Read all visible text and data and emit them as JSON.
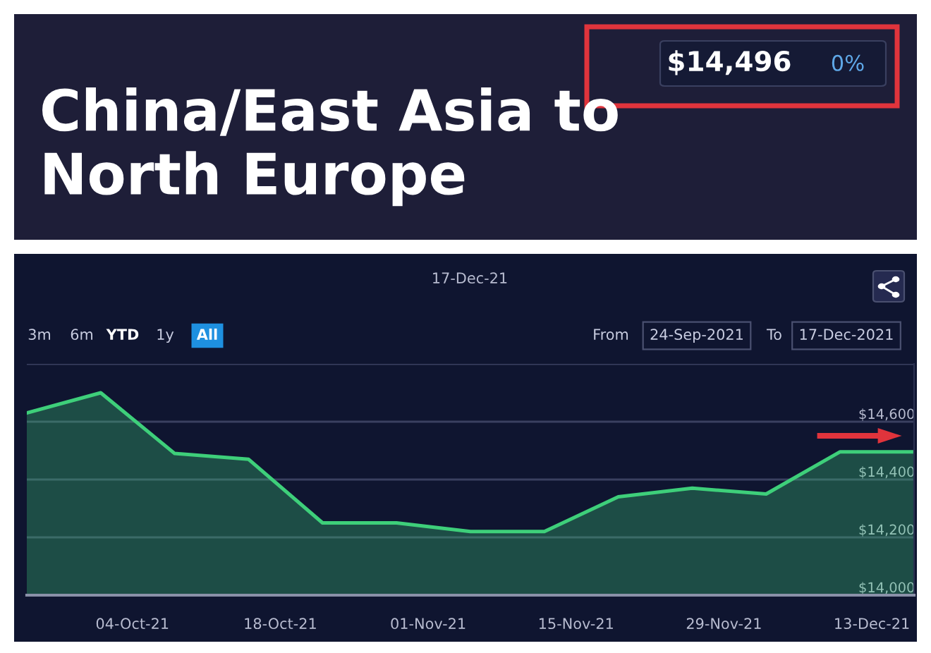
{
  "chart_data": {
    "type": "area",
    "title": "China/East Asia to North Europe",
    "subtitle": "17-Dec-21",
    "x": [
      "2021-09-24",
      "2021-10-01",
      "2021-10-08",
      "2021-10-15",
      "2021-10-22",
      "2021-10-29",
      "2021-11-05",
      "2021-11-12",
      "2021-11-19",
      "2021-11-26",
      "2021-12-03",
      "2021-12-10",
      "2021-12-17"
    ],
    "series": [
      {
        "color": "#3ecf7a",
        "values": [
          14630,
          14700,
          14490,
          14470,
          14250,
          14250,
          14220,
          14220,
          14340,
          14370,
          14350,
          14496,
          14496
        ]
      }
    ],
    "xlim": [
      "2021-09-24",
      "2021-12-17"
    ],
    "xticks": [
      {
        "value": "2021-10-04",
        "label": "04-Oct-21"
      },
      {
        "value": "2021-10-18",
        "label": "18-Oct-21"
      },
      {
        "value": "2021-11-01",
        "label": "01-Nov-21"
      },
      {
        "value": "2021-11-15",
        "label": "15-Nov-21"
      },
      {
        "value": "2021-11-29",
        "label": "29-Nov-21"
      },
      {
        "value": "2021-12-13",
        "label": "13-Dec-21"
      }
    ],
    "ylim": [
      14000,
      14800
    ],
    "yticks": [
      {
        "value": 14000,
        "label": "$14,000"
      },
      {
        "value": 14200,
        "label": "$14,200"
      },
      {
        "value": 14400,
        "label": "$14,400"
      },
      {
        "value": 14600,
        "label": "$14,600"
      },
      {
        "value": 14800,
        "label": null
      }
    ],
    "grid": "y",
    "annotations": [
      "$14,496",
      "0%",
      "3m",
      "6m",
      "YTD",
      "1y",
      "All",
      "From",
      "24-Sep-2021",
      "To",
      "17-Dec-2021"
    ]
  }
}
